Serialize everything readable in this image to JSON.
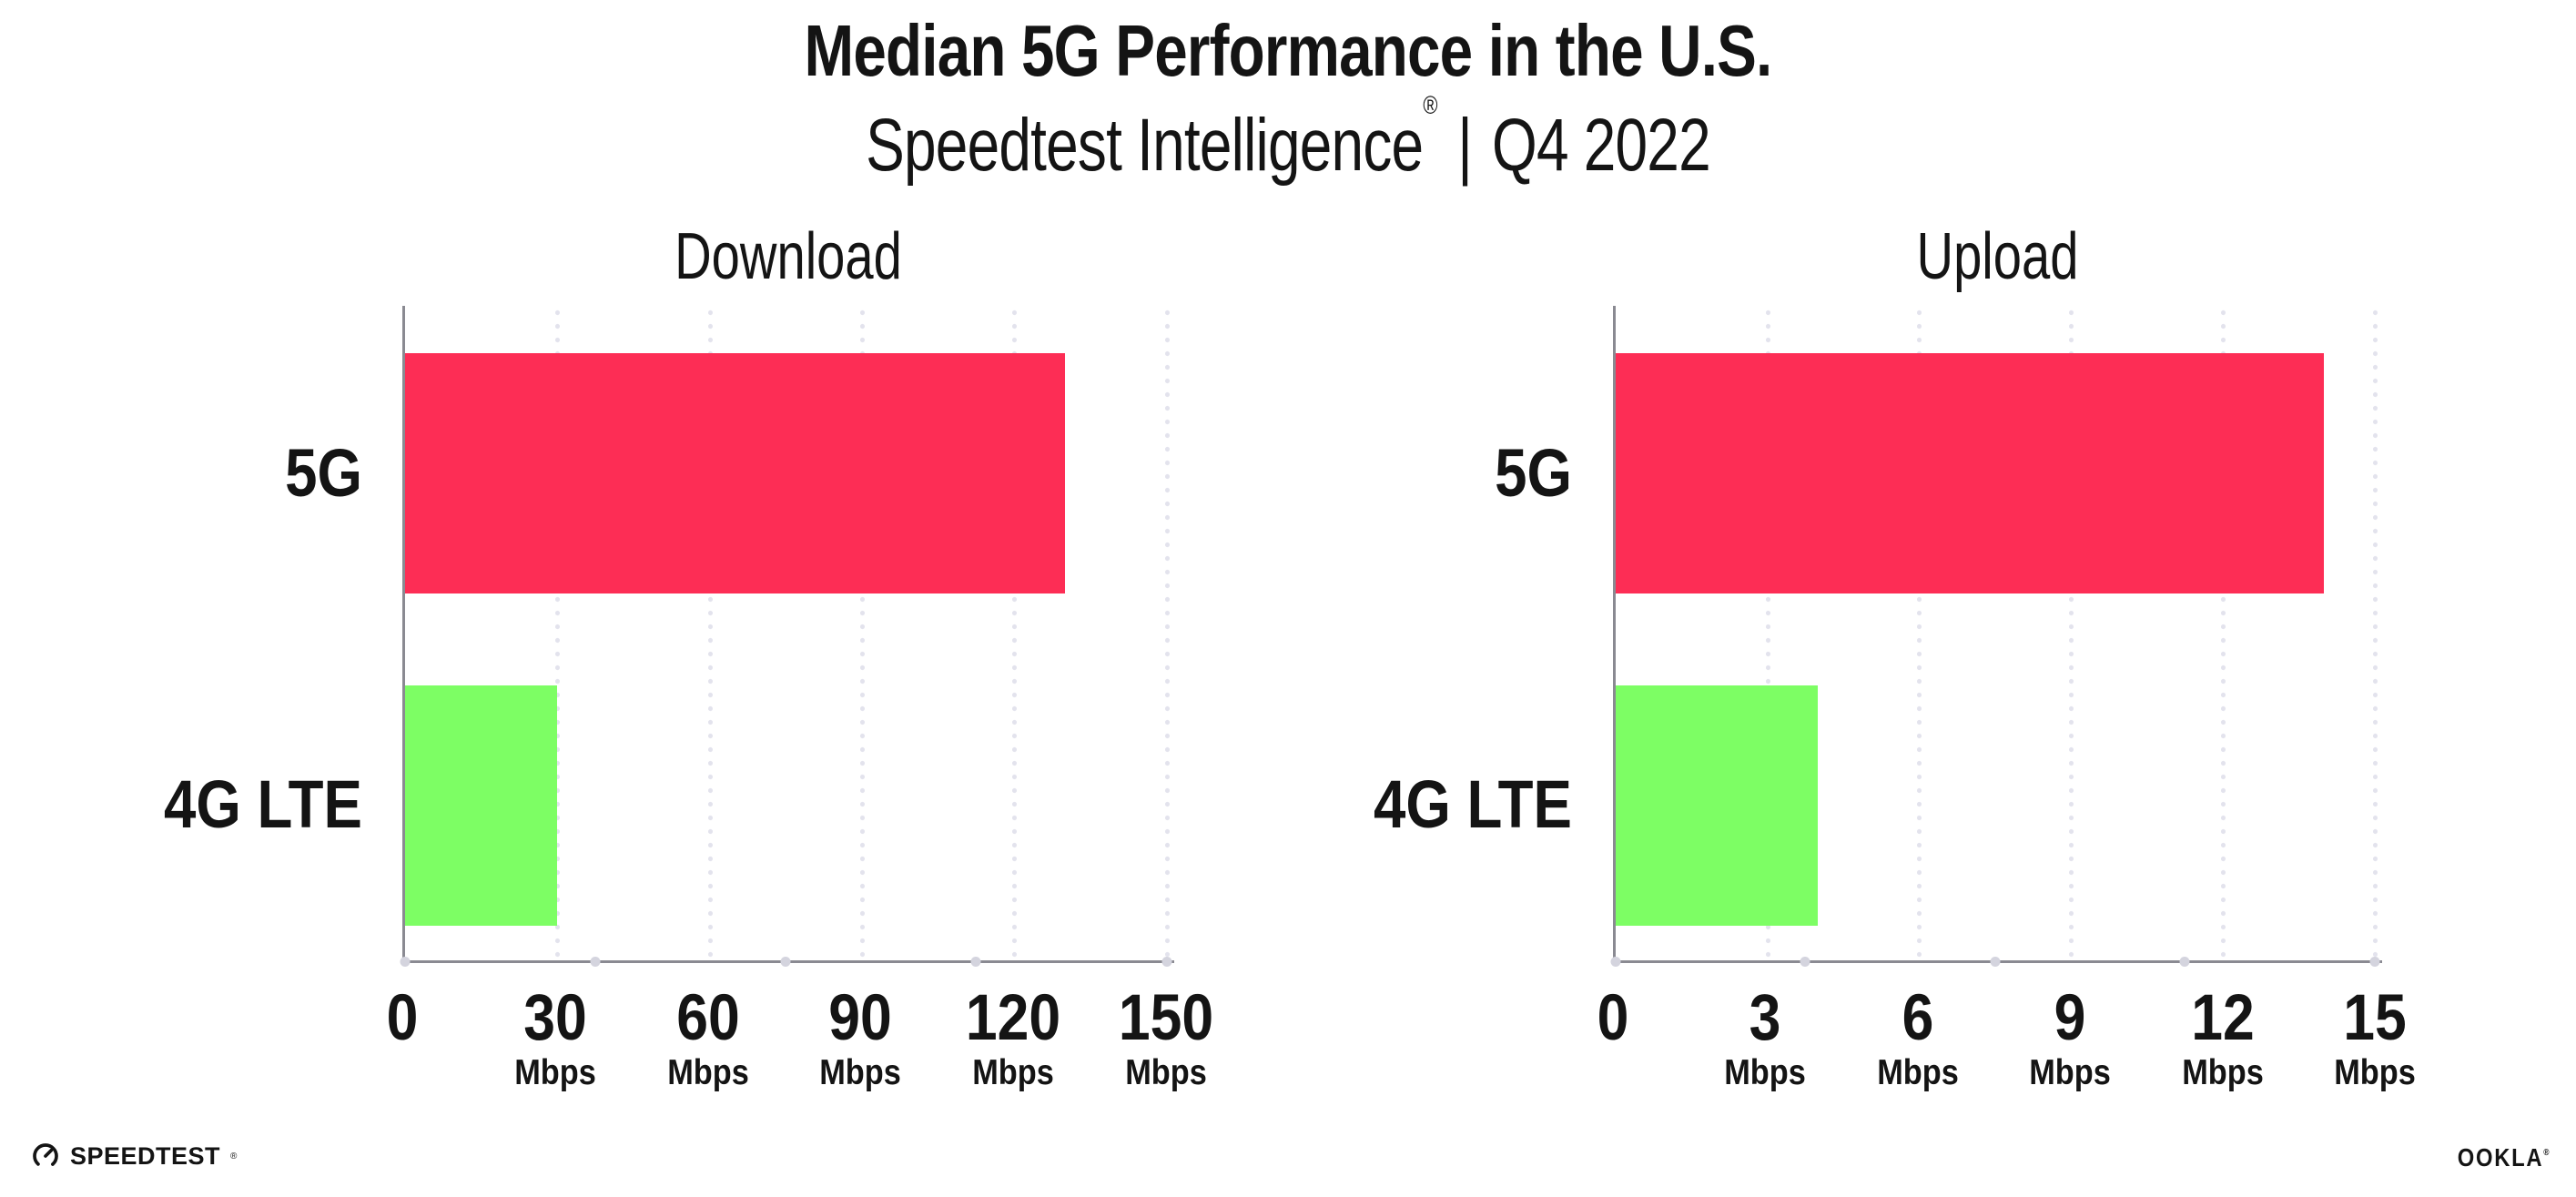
{
  "header": {
    "title": "Median 5G Performance in the U.S.",
    "subtitle": {
      "brand": "Speedtest Intelligence",
      "registered_mark": "®",
      "separator": "|",
      "period": "Q4 2022"
    }
  },
  "chart_data": [
    {
      "type": "bar",
      "orientation": "horizontal",
      "title": "Download",
      "categories": [
        "5G",
        "4G LTE"
      ],
      "values": [
        130,
        30
      ],
      "unit": "Mbps",
      "bar_colors": [
        "#FD2D55",
        "#7DFE64"
      ],
      "xlim": [
        0,
        150
      ],
      "xticks": [
        0,
        30,
        60,
        90,
        120,
        150
      ],
      "tick_unit_label": "Mbps",
      "grid": "vertical-dotted",
      "legend": "none"
    },
    {
      "type": "bar",
      "orientation": "horizontal",
      "title": "Upload",
      "categories": [
        "5G",
        "4G LTE"
      ],
      "values": [
        14,
        4
      ],
      "unit": "Mbps",
      "bar_colors": [
        "#FD2D55",
        "#7DFE64"
      ],
      "xlim": [
        0,
        15
      ],
      "xticks": [
        0,
        3,
        6,
        9,
        12,
        15
      ],
      "tick_unit_label": "Mbps",
      "grid": "vertical-dotted",
      "legend": "none"
    }
  ],
  "footer": {
    "speedtest_logo_text": "SPEEDTEST",
    "speedtest_registered_mark": "®",
    "ookla_logo_text": "OOKLA",
    "ookla_registered_mark": "®"
  },
  "colors": {
    "bar_5g": "#FD2D55",
    "bar_4g_lte": "#7DFE64",
    "gridline": "#E3E3ED",
    "axis_spine": "#8A8A92",
    "tick_dot": "#D4D4DE",
    "text": "#141414"
  }
}
